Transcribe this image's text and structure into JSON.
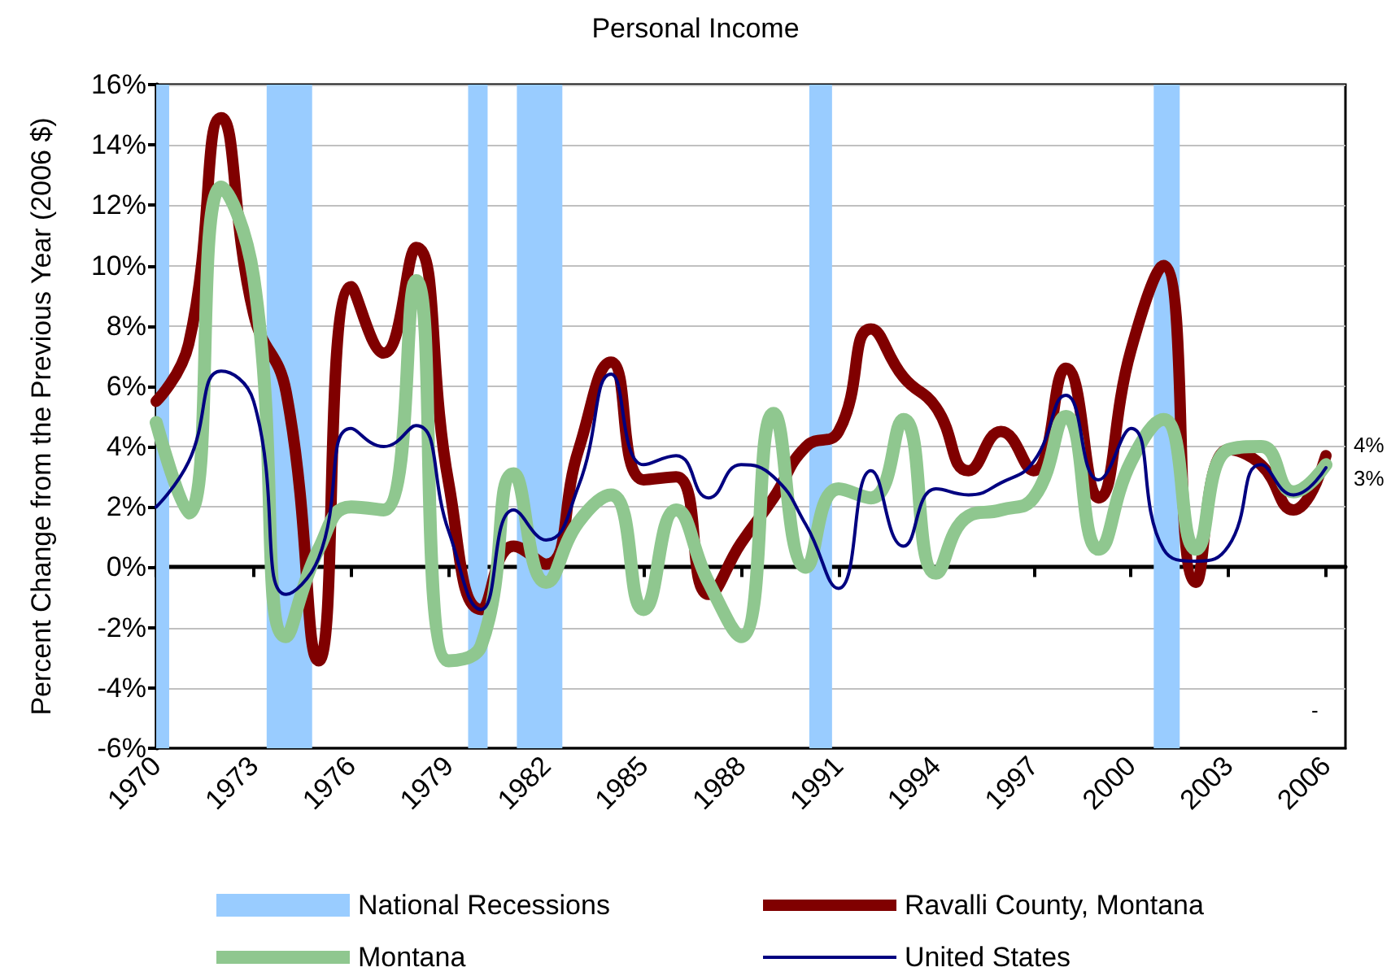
{
  "chart_data": {
    "type": "line",
    "title": "Personal Income",
    "ylabel": "Percent Change from the Previous Year (2006 $)",
    "x": [
      1970,
      1971,
      1972,
      1973,
      1974,
      1975,
      1976,
      1977,
      1978,
      1979,
      1980,
      1981,
      1982,
      1983,
      1984,
      1985,
      1986,
      1987,
      1988,
      1989,
      1990,
      1991,
      1992,
      1993,
      1994,
      1995,
      1996,
      1997,
      1998,
      1999,
      2000,
      2001,
      2002,
      2003,
      2004,
      2005,
      2006
    ],
    "series": [
      {
        "name": "Ravalli County, Montana",
        "color": "#800000",
        "values": [
          5.5,
          7.4,
          14.9,
          8.4,
          5.8,
          -3.1,
          9.3,
          7.1,
          10.6,
          2.8,
          -1.4,
          0.7,
          0.1,
          3.9,
          6.8,
          2.9,
          3.0,
          -0.9,
          0.8,
          2.3,
          4.0,
          4.5,
          7.9,
          6.3,
          5.3,
          3.2,
          4.5,
          3.2,
          6.6,
          2.3,
          7.2,
          10.0,
          -0.5,
          3.9,
          3.4,
          1.9,
          3.7
        ]
      },
      {
        "name": "Montana",
        "color": "#8fc78f",
        "values": [
          4.8,
          1.8,
          12.6,
          9.6,
          -2.3,
          0.6,
          2.0,
          1.9,
          9.5,
          -3.1,
          -2.6,
          3.1,
          -0.5,
          1.5,
          2.4,
          -1.4,
          1.9,
          -0.5,
          -2.3,
          5.1,
          0.0,
          2.6,
          2.3,
          4.9,
          -0.2,
          1.7,
          1.9,
          2.3,
          5.0,
          0.6,
          3.5,
          4.9,
          0.6,
          3.9,
          4.0,
          2.5,
          3.4
        ]
      },
      {
        "name": "United States",
        "color": "#000080",
        "values": [
          2.0,
          3.5,
          6.5,
          5.5,
          -0.9,
          0.3,
          4.6,
          4.0,
          4.7,
          1.2,
          -1.4,
          1.9,
          0.9,
          2.7,
          6.4,
          3.4,
          3.7,
          2.3,
          3.4,
          3.0,
          1.4,
          -0.7,
          3.2,
          0.7,
          2.6,
          2.4,
          2.8,
          3.5,
          5.7,
          2.9,
          4.6,
          0.6,
          0.2,
          0.7,
          3.4,
          2.4,
          3.3
        ]
      }
    ],
    "bands": [
      {
        "axis": "x",
        "from": 1970,
        "to": 1970.4,
        "label": "National Recessions",
        "color": "#99ccff"
      },
      {
        "axis": "x",
        "from": 1973.4,
        "to": 1974.8,
        "color": "#99ccff"
      },
      {
        "axis": "x",
        "from": 1979.6,
        "to": 1980.2,
        "color": "#99ccff"
      },
      {
        "axis": "x",
        "from": 1981.1,
        "to": 1982.5,
        "color": "#99ccff"
      },
      {
        "axis": "x",
        "from": 1990.1,
        "to": 1990.8,
        "color": "#99ccff"
      },
      {
        "axis": "x",
        "from": 2000.7,
        "to": 2001.5,
        "color": "#99ccff"
      }
    ],
    "annotations": [
      {
        "text": "4%",
        "x": 2006,
        "y": 3.7
      },
      {
        "text": "3%",
        "x": 2006,
        "y": 3.3
      },
      "-"
    ],
    "xlim": [
      1970,
      2006.6
    ],
    "xticks": [
      1970,
      1973,
      1976,
      1979,
      1982,
      1985,
      1988,
      1991,
      1994,
      1997,
      2000,
      2003,
      2006
    ],
    "ylim": [
      -6,
      16
    ],
    "yticks": [
      {
        "value": -6,
        "label": "-6%"
      },
      {
        "value": -4,
        "label": "-4%"
      },
      {
        "value": -2,
        "label": "-2%"
      },
      {
        "value": 0,
        "label": "0%"
      },
      {
        "value": 2,
        "label": "2%"
      },
      {
        "value": 4,
        "label": "4%"
      },
      {
        "value": 6,
        "label": "6%"
      },
      {
        "value": 8,
        "label": "8%"
      },
      {
        "value": 10,
        "label": "10%"
      },
      {
        "value": 12,
        "label": "12%"
      },
      {
        "value": 14,
        "label": "14%"
      },
      {
        "value": 16,
        "label": "16%"
      }
    ],
    "grid": "y",
    "legend": "bottom",
    "marker": "none",
    "line_style": "solid"
  }
}
